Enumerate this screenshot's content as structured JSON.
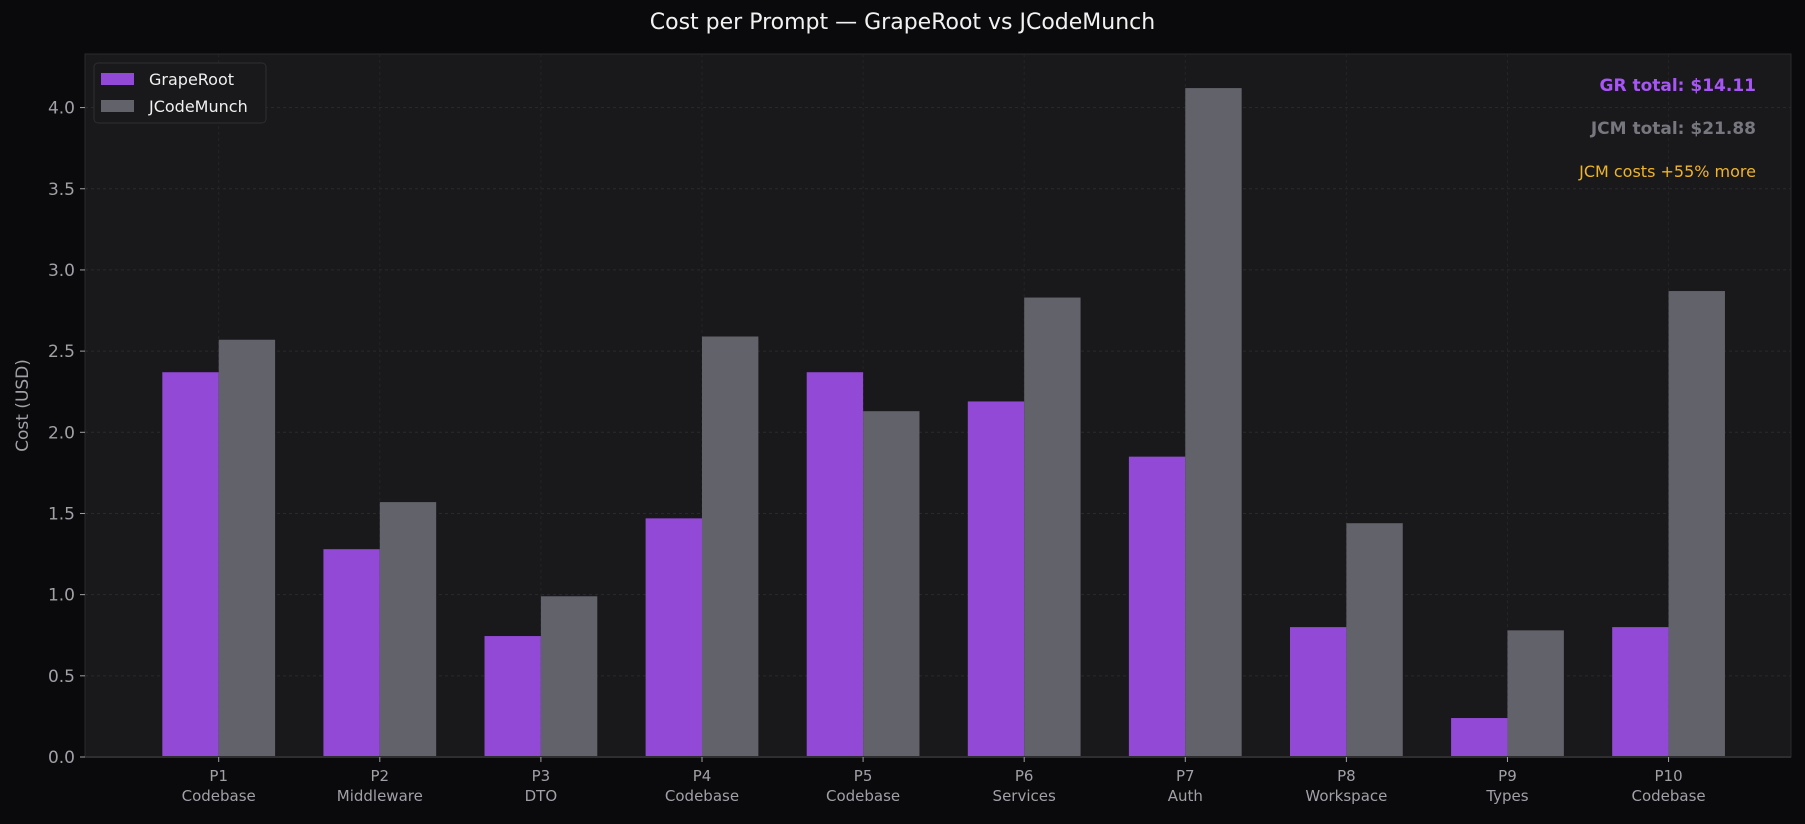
{
  "chart_data": {
    "type": "bar",
    "title": "Cost per Prompt — GrapeRoot vs JCodeMunch",
    "xlabel": "",
    "ylabel": "Cost (USD)",
    "ylim": [
      0,
      4.33
    ],
    "yticks": [
      "0.0",
      "0.5",
      "1.0",
      "1.5",
      "2.0",
      "2.5",
      "3.0",
      "3.5",
      "4.0"
    ],
    "grid": true,
    "legend_position": "top-left",
    "categories": [
      [
        "P1",
        "Codebase"
      ],
      [
        "P2",
        "Middleware"
      ],
      [
        "P3",
        "DTO"
      ],
      [
        "P4",
        "Codebase"
      ],
      [
        "P5",
        "Codebase"
      ],
      [
        "P6",
        "Services"
      ],
      [
        "P7",
        "Auth"
      ],
      [
        "P8",
        "Workspace"
      ],
      [
        "P9",
        "Types"
      ],
      [
        "P10",
        "Codebase"
      ]
    ],
    "series": [
      {
        "name": "GrapeRoot",
        "color": "#9249d6",
        "values": [
          2.37,
          1.28,
          0.745,
          1.47,
          2.37,
          2.19,
          1.85,
          0.8,
          0.24,
          0.8
        ]
      },
      {
        "name": "JCodeMunch",
        "color": "#62626b",
        "values": [
          2.57,
          1.57,
          0.99,
          2.59,
          2.13,
          2.83,
          4.12,
          1.44,
          0.78,
          2.87
        ]
      }
    ],
    "annotations": [
      {
        "text": "GR total: $14.11",
        "color": "#a855f7",
        "bold": true
      },
      {
        "text": "JCM total: $21.88",
        "color": "#77777f",
        "bold": true
      },
      {
        "text": "JCM costs +55% more",
        "color": "#f0b429",
        "bold": false
      }
    ]
  }
}
